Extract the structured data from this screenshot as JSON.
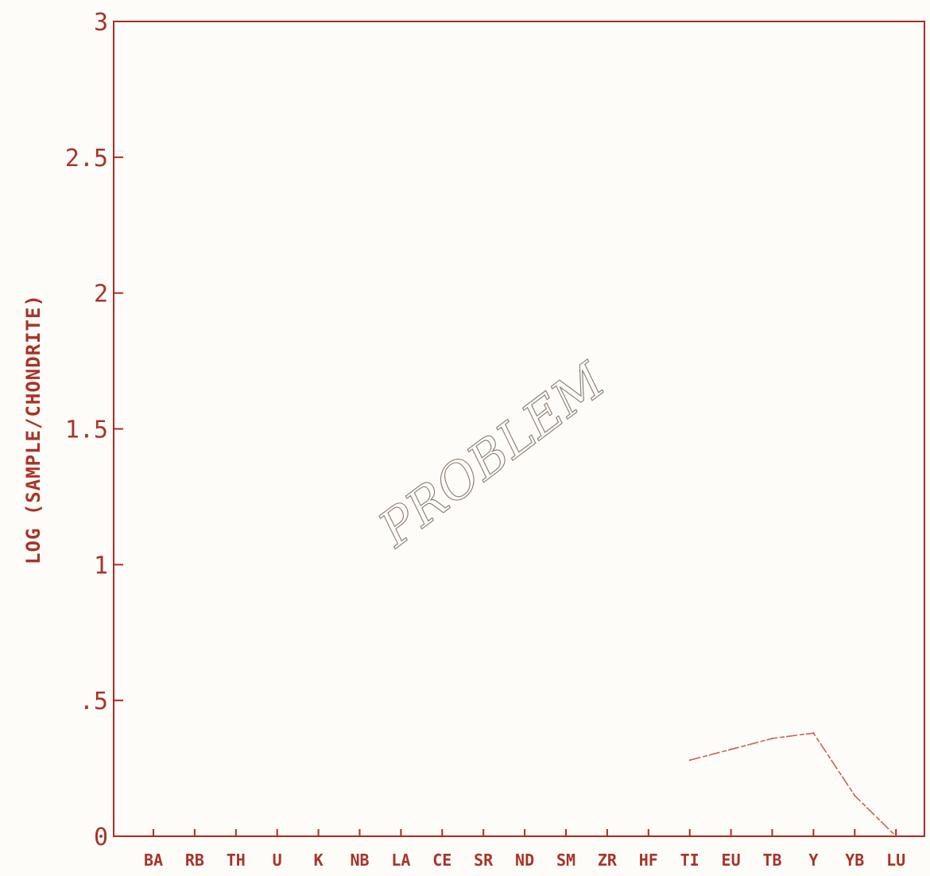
{
  "chart_data": {
    "type": "line",
    "title": "",
    "ylabel": "LOG (SAMPLE/CHONDRITE)",
    "xlabel": "",
    "ylim": [
      0,
      3
    ],
    "y_ticks": [
      {
        "value": 0,
        "label": "0"
      },
      {
        "value": 0.5,
        "label": ".5"
      },
      {
        "value": 1,
        "label": "1"
      },
      {
        "value": 1.5,
        "label": "1.5"
      },
      {
        "value": 2,
        "label": "2"
      },
      {
        "value": 2.5,
        "label": "2.5"
      },
      {
        "value": 3,
        "label": "3"
      }
    ],
    "categories": [
      "BA",
      "RB",
      "TH",
      "U",
      "K",
      "NB",
      "LA",
      "CE",
      "SR",
      "ND",
      "SM",
      "ZR",
      "HF",
      "TI",
      "EU",
      "TB",
      "Y",
      "YB",
      "LU",
      "."
    ],
    "grid": false,
    "series": [
      {
        "x": [
          "TI",
          "EU",
          "TB",
          "Y",
          "YB",
          "LU"
        ],
        "values": [
          0.28,
          0.32,
          0.36,
          0.38,
          0.15,
          -0.01
        ]
      }
    ],
    "annotations": [
      {
        "text": "PROBLEM",
        "style": "handwritten"
      }
    ]
  },
  "colors": {
    "axis": "#b02a20",
    "line": "#c8433a",
    "text": "#a83428",
    "background": "#fdfcf8"
  }
}
